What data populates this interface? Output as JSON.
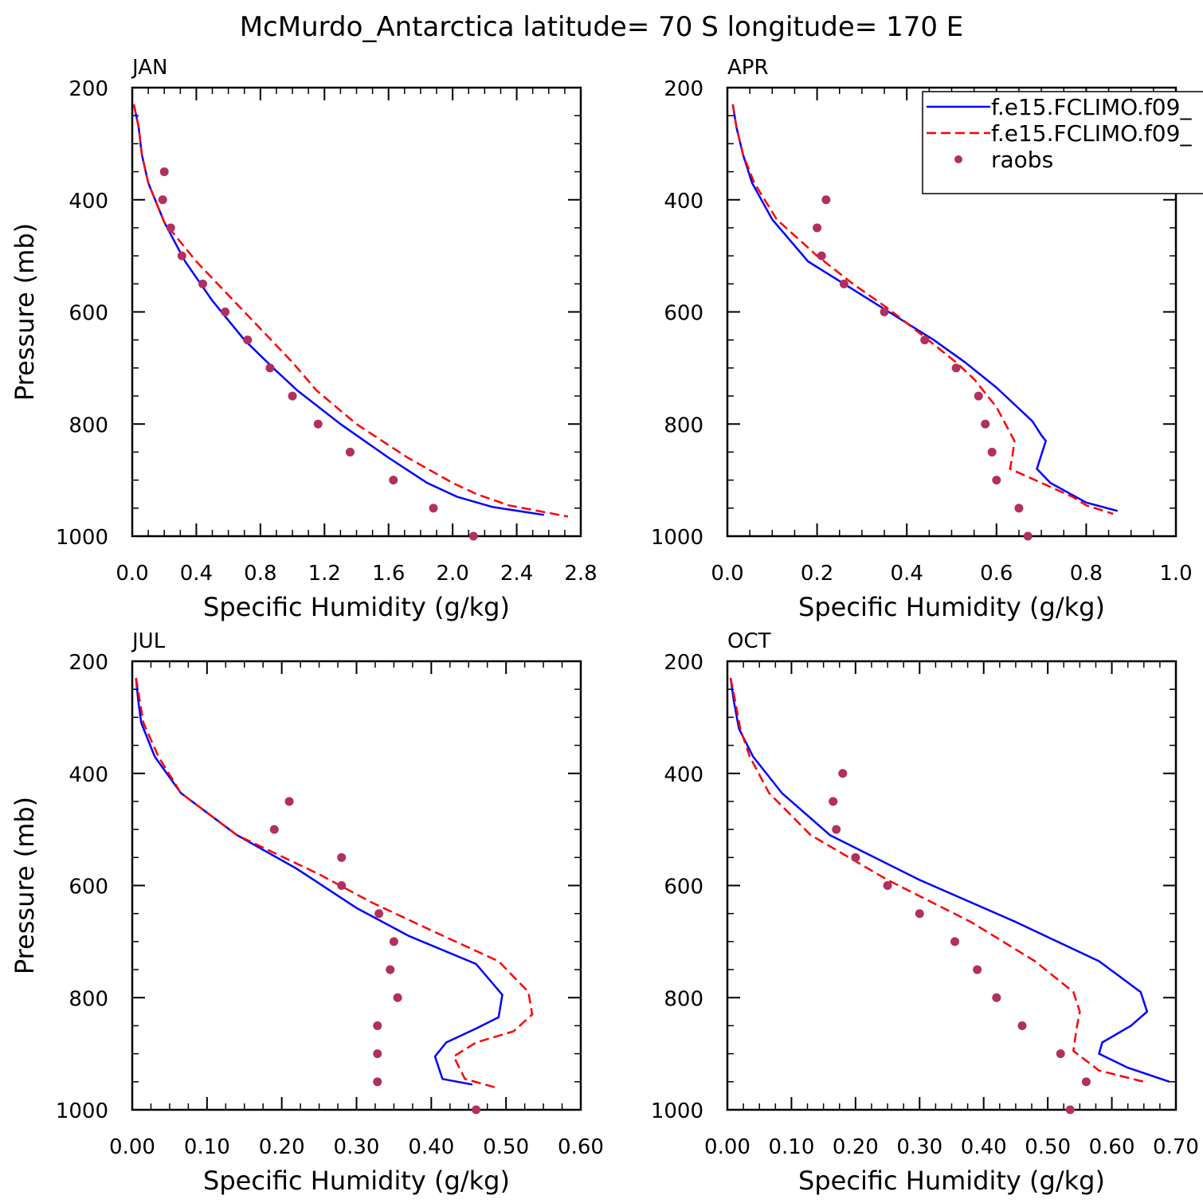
{
  "title": "McMurdo_Antarctica  latitude= 70 S longitude= 170 E",
  "legend": {
    "placement": "top-right of APR panel",
    "entries": [
      {
        "label": "f.e15.FCLIMO.f09_",
        "style": "solid",
        "color": "#0000ff"
      },
      {
        "label": "f.e15.FCLIMO.f09_",
        "style": "dashed",
        "color": "#ff0000"
      },
      {
        "label": "raobs",
        "style": "dot",
        "color": "#b03060"
      }
    ]
  },
  "colors": {
    "model1": "#0000ff",
    "model2": "#ff0000",
    "raobs": "#b03060"
  },
  "chart_data": [
    {
      "type": "line",
      "panel": "JAN",
      "xlabel": "Specific Humidity (g/kg)",
      "ylabel": "Pressure (mb)",
      "xlim": [
        0,
        2.8
      ],
      "ylim": [
        1000,
        200
      ],
      "xticks": [
        "0.0",
        "0.4",
        "0.8",
        "1.2",
        "1.6",
        "2.0",
        "2.4",
        "2.8"
      ],
      "xtick_values": [
        0,
        0.4,
        0.8,
        1.2,
        1.6,
        2.0,
        2.4,
        2.8
      ],
      "yticks": [
        "200",
        "400",
        "600",
        "800",
        "1000"
      ],
      "ytick_values": [
        200,
        400,
        600,
        800,
        1000
      ],
      "series": [
        {
          "style": "solid",
          "color": "#0000ff",
          "points": [
            [
              0.01,
              230
            ],
            [
              0.04,
              270
            ],
            [
              0.06,
              320
            ],
            [
              0.1,
              370
            ],
            [
              0.2,
              440
            ],
            [
              0.33,
              510
            ],
            [
              0.5,
              580
            ],
            [
              0.7,
              650
            ],
            [
              0.88,
              700
            ],
            [
              1.03,
              740
            ],
            [
              1.3,
              800
            ],
            [
              1.6,
              860
            ],
            [
              1.84,
              905
            ],
            [
              2.03,
              930
            ],
            [
              2.25,
              948
            ],
            [
              2.57,
              962
            ]
          ]
        },
        {
          "style": "dashed",
          "color": "#ff0000",
          "points": [
            [
              0.01,
              230
            ],
            [
              0.04,
              270
            ],
            [
              0.06,
              320
            ],
            [
              0.1,
              370
            ],
            [
              0.2,
              440
            ],
            [
              0.4,
              510
            ],
            [
              0.6,
              570
            ],
            [
              0.8,
              630
            ],
            [
              1.0,
              690
            ],
            [
              1.15,
              740
            ],
            [
              1.4,
              800
            ],
            [
              1.72,
              860
            ],
            [
              2.0,
              905
            ],
            [
              2.15,
              925
            ],
            [
              2.35,
              945
            ],
            [
              2.72,
              965
            ]
          ]
        },
        {
          "style": "dot",
          "color": "#b03060",
          "points": [
            [
              0.2,
              350
            ],
            [
              0.19,
              400
            ],
            [
              0.24,
              450
            ],
            [
              0.31,
              500
            ],
            [
              0.44,
              550
            ],
            [
              0.58,
              600
            ],
            [
              0.72,
              650
            ],
            [
              0.86,
              700
            ],
            [
              1.0,
              750
            ],
            [
              1.16,
              800
            ],
            [
              1.36,
              850
            ],
            [
              1.63,
              900
            ],
            [
              1.88,
              950
            ],
            [
              2.13,
              1000
            ]
          ]
        }
      ]
    },
    {
      "type": "line",
      "panel": "APR",
      "xlabel": "Specific Humidity (g/kg)",
      "ylabel": "",
      "xlim": [
        0,
        1.0
      ],
      "ylim": [
        1000,
        200
      ],
      "xticks": [
        "0.0",
        "0.2",
        "0.4",
        "0.6",
        "0.8",
        "1.0"
      ],
      "xtick_values": [
        0,
        0.2,
        0.4,
        0.6,
        0.8,
        1.0
      ],
      "yticks": [
        "200",
        "400",
        "600",
        "800",
        "1000"
      ],
      "ytick_values": [
        200,
        400,
        600,
        800,
        1000
      ],
      "series": [
        {
          "style": "solid",
          "color": "#0000ff",
          "points": [
            [
              0.012,
              230
            ],
            [
              0.02,
              270
            ],
            [
              0.035,
              320
            ],
            [
              0.055,
              370
            ],
            [
              0.1,
              435
            ],
            [
              0.18,
              510
            ],
            [
              0.26,
              550
            ],
            [
              0.36,
              600
            ],
            [
              0.46,
              650
            ],
            [
              0.53,
              690
            ],
            [
              0.6,
              735
            ],
            [
              0.68,
              795
            ],
            [
              0.7,
              820
            ],
            [
              0.71,
              830
            ],
            [
              0.7,
              855
            ],
            [
              0.69,
              880
            ],
            [
              0.72,
              905
            ],
            [
              0.8,
              940
            ],
            [
              0.87,
              955
            ]
          ]
        },
        {
          "style": "dashed",
          "color": "#ff0000",
          "points": [
            [
              0.012,
              230
            ],
            [
              0.02,
              270
            ],
            [
              0.035,
              320
            ],
            [
              0.06,
              370
            ],
            [
              0.11,
              435
            ],
            [
              0.2,
              500
            ],
            [
              0.28,
              550
            ],
            [
              0.36,
              595
            ],
            [
              0.44,
              645
            ],
            [
              0.51,
              690
            ],
            [
              0.55,
              720
            ],
            [
              0.6,
              770
            ],
            [
              0.63,
              815
            ],
            [
              0.64,
              830
            ],
            [
              0.635,
              860
            ],
            [
              0.63,
              880
            ],
            [
              0.7,
              905
            ],
            [
              0.77,
              930
            ],
            [
              0.8,
              945
            ],
            [
              0.86,
              960
            ]
          ]
        },
        {
          "style": "dot",
          "color": "#b03060",
          "points": [
            [
              0.22,
              400
            ],
            [
              0.2,
              450
            ],
            [
              0.21,
              500
            ],
            [
              0.26,
              550
            ],
            [
              0.35,
              600
            ],
            [
              0.44,
              650
            ],
            [
              0.51,
              700
            ],
            [
              0.56,
              750
            ],
            [
              0.575,
              800
            ],
            [
              0.59,
              850
            ],
            [
              0.6,
              900
            ],
            [
              0.65,
              950
            ],
            [
              0.67,
              1000
            ]
          ]
        }
      ]
    },
    {
      "type": "line",
      "panel": "JUL",
      "xlabel": "Specific Humidity (g/kg)",
      "ylabel": "Pressure (mb)",
      "xlim": [
        0,
        0.6
      ],
      "ylim": [
        1000,
        200
      ],
      "xticks": [
        "0.00",
        "0.10",
        "0.20",
        "0.30",
        "0.40",
        "0.50",
        "0.60"
      ],
      "xtick_values": [
        0,
        0.1,
        0.2,
        0.3,
        0.4,
        0.5,
        0.6
      ],
      "yticks": [
        "200",
        "400",
        "600",
        "800",
        "1000"
      ],
      "ytick_values": [
        200,
        400,
        600,
        800,
        1000
      ],
      "series": [
        {
          "style": "solid",
          "color": "#0000ff",
          "points": [
            [
              0.005,
              230
            ],
            [
              0.008,
              270
            ],
            [
              0.012,
              310
            ],
            [
              0.03,
              370
            ],
            [
              0.065,
              435
            ],
            [
              0.14,
              510
            ],
            [
              0.22,
              570
            ],
            [
              0.3,
              640
            ],
            [
              0.37,
              690
            ],
            [
              0.46,
              740
            ],
            [
              0.495,
              795
            ],
            [
              0.49,
              835
            ],
            [
              0.46,
              855
            ],
            [
              0.42,
              880
            ],
            [
              0.405,
              905
            ],
            [
              0.415,
              945
            ],
            [
              0.455,
              955
            ]
          ]
        },
        {
          "style": "dashed",
          "color": "#ff0000",
          "points": [
            [
              0.005,
              230
            ],
            [
              0.01,
              270
            ],
            [
              0.015,
              310
            ],
            [
              0.035,
              370
            ],
            [
              0.065,
              435
            ],
            [
              0.14,
              510
            ],
            [
              0.25,
              580
            ],
            [
              0.32,
              630
            ],
            [
              0.4,
              680
            ],
            [
              0.49,
              735
            ],
            [
              0.53,
              790
            ],
            [
              0.535,
              830
            ],
            [
              0.51,
              860
            ],
            [
              0.46,
              880
            ],
            [
              0.43,
              905
            ],
            [
              0.445,
              945
            ],
            [
              0.485,
              960
            ]
          ]
        },
        {
          "style": "dot",
          "color": "#b03060",
          "points": [
            [
              0.21,
              450
            ],
            [
              0.19,
              500
            ],
            [
              0.28,
              550
            ],
            [
              0.28,
              600
            ],
            [
              0.33,
              650
            ],
            [
              0.35,
              700
            ],
            [
              0.345,
              750
            ],
            [
              0.355,
              800
            ],
            [
              0.328,
              850
            ],
            [
              0.328,
              900
            ],
            [
              0.328,
              950
            ],
            [
              0.46,
              1000
            ]
          ]
        }
      ]
    },
    {
      "type": "line",
      "panel": "OCT",
      "xlabel": "Specific Humidity (g/kg)",
      "ylabel": "",
      "xlim": [
        0,
        0.7
      ],
      "ylim": [
        1000,
        200
      ],
      "xticks": [
        "0.00",
        "0.10",
        "0.20",
        "0.30",
        "0.40",
        "0.50",
        "0.60",
        "0.70"
      ],
      "xtick_values": [
        0,
        0.1,
        0.2,
        0.3,
        0.4,
        0.5,
        0.6,
        0.7
      ],
      "yticks": [
        "200",
        "400",
        "600",
        "800",
        "1000"
      ],
      "ytick_values": [
        200,
        400,
        600,
        800,
        1000
      ],
      "series": [
        {
          "style": "solid",
          "color": "#0000ff",
          "points": [
            [
              0.005,
              230
            ],
            [
              0.01,
              270
            ],
            [
              0.018,
              320
            ],
            [
              0.04,
              370
            ],
            [
              0.085,
              435
            ],
            [
              0.16,
              510
            ],
            [
              0.3,
              590
            ],
            [
              0.45,
              665
            ],
            [
              0.58,
              735
            ],
            [
              0.645,
              790
            ],
            [
              0.655,
              825
            ],
            [
              0.63,
              850
            ],
            [
              0.585,
              880
            ],
            [
              0.58,
              900
            ],
            [
              0.625,
              925
            ],
            [
              0.69,
              950
            ]
          ]
        },
        {
          "style": "dashed",
          "color": "#ff0000",
          "points": [
            [
              0.005,
              230
            ],
            [
              0.012,
              270
            ],
            [
              0.02,
              320
            ],
            [
              0.035,
              370
            ],
            [
              0.065,
              435
            ],
            [
              0.13,
              510
            ],
            [
              0.25,
              590
            ],
            [
              0.38,
              665
            ],
            [
              0.48,
              735
            ],
            [
              0.54,
              790
            ],
            [
              0.55,
              825
            ],
            [
              0.545,
              855
            ],
            [
              0.54,
              895
            ],
            [
              0.58,
              930
            ],
            [
              0.65,
              950
            ]
          ]
        },
        {
          "style": "dot",
          "color": "#b03060",
          "points": [
            [
              0.18,
              400
            ],
            [
              0.165,
              450
            ],
            [
              0.17,
              500
            ],
            [
              0.2,
              550
            ],
            [
              0.25,
              600
            ],
            [
              0.3,
              650
            ],
            [
              0.355,
              700
            ],
            [
              0.39,
              750
            ],
            [
              0.42,
              800
            ],
            [
              0.46,
              850
            ],
            [
              0.52,
              900
            ],
            [
              0.56,
              950
            ],
            [
              0.535,
              1000
            ]
          ]
        }
      ]
    }
  ]
}
